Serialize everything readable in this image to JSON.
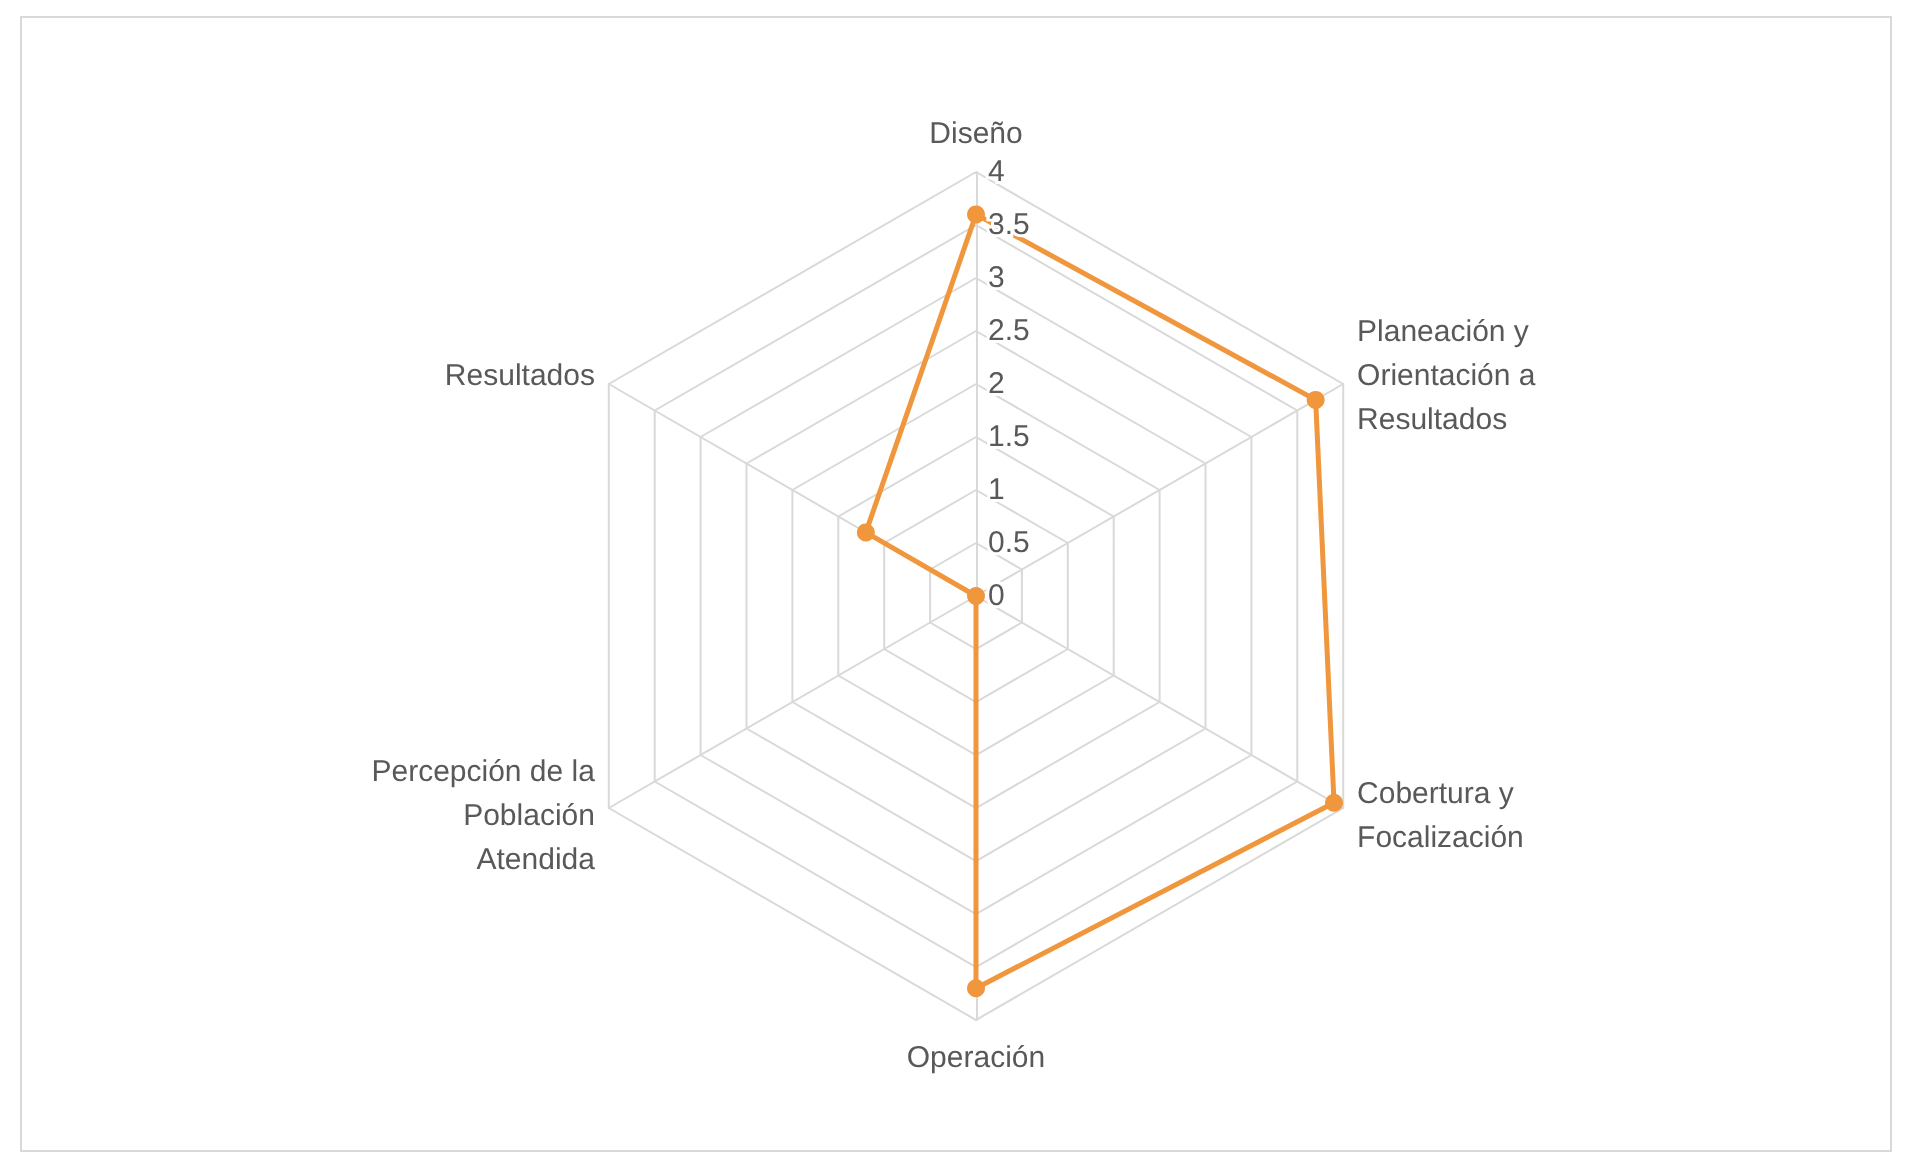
{
  "chart_data": {
    "type": "radar",
    "categories": [
      "Diseño",
      "Planeación y Orientación a Resultados",
      "Cobertura y Focalización",
      "Operación",
      "Percepción de la Población Atendida",
      "Resultados"
    ],
    "series": [
      {
        "color": "#f0963c",
        "values": [
          3.6,
          3.7,
          3.9,
          3.7,
          0,
          1.2
        ]
      }
    ],
    "ylim": [
      0,
      4
    ],
    "yticks": [
      0,
      0.5,
      1,
      1.5,
      2,
      2.5,
      3,
      3.5,
      4
    ],
    "marker": "circle",
    "grid": true
  }
}
